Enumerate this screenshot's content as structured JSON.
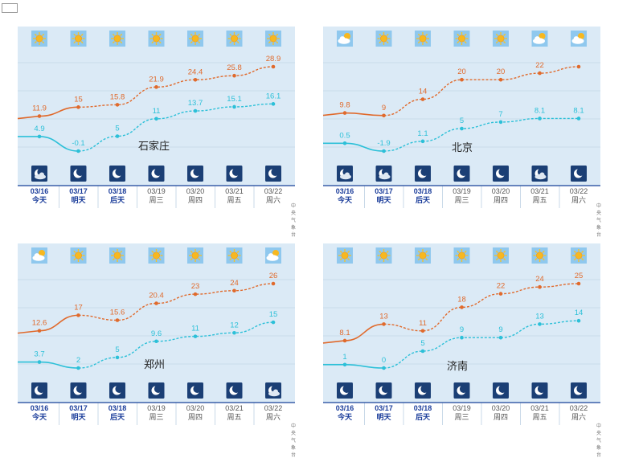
{
  "source_label": "中央气象台",
  "chart_data": [
    {
      "type": "line",
      "city": "石家庄",
      "dates": [
        "03/16",
        "03/17",
        "03/18",
        "03/19",
        "03/20",
        "03/21",
        "03/22"
      ],
      "days": [
        "今天",
        "明天",
        "后天",
        "周三",
        "周四",
        "周五",
        "周六"
      ],
      "day_icons": [
        "sun-icon",
        "sun-icon",
        "sun-icon",
        "sun-icon",
        "sun-icon",
        "sun-icon",
        "sun-icon"
      ],
      "night_icons": [
        "moon-cloud-icon",
        "moon-icon",
        "moon-icon",
        "moon-icon",
        "moon-icon",
        "moon-icon",
        "moon-icon"
      ],
      "series": [
        {
          "values": [
            11.9,
            15,
            15.8,
            21.9,
            24.4,
            25.8,
            28.9
          ],
          "labels": [
            "11.9",
            "15",
            "15.8",
            "21.9",
            "24.4",
            "25.8",
            "28.9"
          ],
          "color": "#e06a2c"
        },
        {
          "values": [
            4.9,
            -0.1,
            5,
            11,
            13.7,
            15.1,
            16.1
          ],
          "labels": [
            "4.9",
            "-0.1",
            "5",
            "11",
            "13.7",
            "15.1",
            "16.1"
          ],
          "color": "#2cc0d8"
        }
      ]
    },
    {
      "type": "line",
      "city": "北京",
      "dates": [
        "03/16",
        "03/17",
        "03/18",
        "03/19",
        "03/20",
        "03/21",
        "03/22"
      ],
      "days": [
        "今天",
        "明天",
        "后天",
        "周三",
        "周四",
        "周五",
        "周六"
      ],
      "day_icons": [
        "cloudy-sun-icon",
        "sun-icon",
        "sun-icon",
        "sun-icon",
        "sun-icon",
        "cloudy-sun-icon",
        "cloudy-sun-icon"
      ],
      "night_icons": [
        "moon-cloud-icon",
        "moon-cloud-icon",
        "moon-icon",
        "moon-icon",
        "moon-icon",
        "moon-cloud-icon",
        "moon-icon"
      ],
      "series": [
        {
          "values": [
            9.8,
            9,
            14,
            20,
            20,
            22,
            24
          ],
          "labels": [
            "9.8",
            "9",
            "14",
            "20",
            "20",
            "22",
            ""
          ],
          "color": "#e06a2c"
        },
        {
          "values": [
            0.5,
            -1.9,
            1.1,
            5,
            7,
            8.1,
            8.1
          ],
          "labels": [
            "0.5",
            "-1.9",
            "1.1",
            "5",
            "7",
            "8.1",
            "8.1"
          ],
          "color": "#2cc0d8"
        }
      ]
    },
    {
      "type": "line",
      "city": "郑州",
      "dates": [
        "03/16",
        "03/17",
        "03/18",
        "03/19",
        "03/20",
        "03/21",
        "03/22"
      ],
      "days": [
        "今天",
        "明天",
        "后天",
        "周三",
        "周四",
        "周五",
        "周六"
      ],
      "day_icons": [
        "cloudy-sun-icon",
        "sun-icon",
        "sun-icon",
        "sun-icon",
        "sun-icon",
        "sun-icon",
        "cloudy-sun-icon"
      ],
      "night_icons": [
        "moon-icon",
        "moon-icon",
        "moon-icon",
        "moon-icon",
        "moon-icon",
        "moon-icon",
        "moon-cloud-icon"
      ],
      "series": [
        {
          "values": [
            12.6,
            17,
            15.6,
            20.4,
            23,
            24,
            26
          ],
          "labels": [
            "12.6",
            "17",
            "15.6",
            "20.4",
            "23",
            "24",
            "26"
          ],
          "color": "#e06a2c"
        },
        {
          "values": [
            3.7,
            2,
            5,
            9.6,
            11,
            12,
            15
          ],
          "labels": [
            "3.7",
            "2",
            "5",
            "9.6",
            "11",
            "12",
            "15"
          ],
          "color": "#2cc0d8"
        }
      ]
    },
    {
      "type": "line",
      "city": "济南",
      "dates": [
        "03/16",
        "03/17",
        "03/18",
        "03/19",
        "03/20",
        "03/21",
        "03/22"
      ],
      "days": [
        "今天",
        "明天",
        "后天",
        "周三",
        "周四",
        "周五",
        "周六"
      ],
      "day_icons": [
        "sun-icon",
        "sun-icon",
        "sun-icon",
        "sun-icon",
        "sun-icon",
        "sun-icon",
        "sun-icon"
      ],
      "night_icons": [
        "moon-icon",
        "moon-icon",
        "moon-icon",
        "moon-icon",
        "moon-icon",
        "moon-icon",
        "moon-icon"
      ],
      "series": [
        {
          "values": [
            8.1,
            13,
            11,
            18,
            22,
            24,
            25
          ],
          "labels": [
            "8.1",
            "13",
            "11",
            "18",
            "22",
            "24",
            "25"
          ],
          "color": "#e06a2c"
        },
        {
          "values": [
            1,
            0,
            5,
            9,
            9,
            13,
            14
          ],
          "labels": [
            "1",
            "0",
            "5",
            "9",
            "9",
            "13",
            "14"
          ],
          "color": "#2cc0d8"
        }
      ]
    }
  ]
}
